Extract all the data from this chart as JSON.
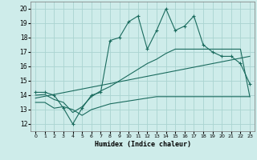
{
  "xlabel": "Humidex (Indice chaleur)",
  "background_color": "#ceecea",
  "grid_color": "#aad4d0",
  "line_color": "#1a6b5e",
  "xlim": [
    -0.5,
    23.5
  ],
  "ylim": [
    11.5,
    20.5
  ],
  "yticks": [
    12,
    13,
    14,
    15,
    16,
    17,
    18,
    19,
    20
  ],
  "xtick_positions": [
    0,
    1,
    2,
    3,
    4,
    5,
    6,
    7,
    8,
    9,
    10,
    11,
    12,
    13,
    14,
    15,
    16,
    17,
    18,
    19,
    20,
    21,
    22,
    23
  ],
  "xtick_labels": [
    "0",
    "1",
    "2",
    "3",
    "4",
    "5",
    "6",
    "7",
    "8",
    "9",
    "10",
    "11",
    "12",
    "13",
    "14",
    "15",
    "16",
    "17",
    "18",
    "19",
    "20",
    "21",
    "22",
    "23"
  ],
  "series1_x": [
    0,
    1,
    2,
    3,
    4,
    5,
    6,
    7,
    8,
    9,
    10,
    11,
    12,
    13,
    14,
    15,
    16,
    17,
    18,
    19,
    20,
    21,
    22,
    23
  ],
  "series1_y": [
    14.2,
    14.2,
    14.0,
    13.1,
    12.0,
    13.1,
    14.0,
    14.2,
    17.8,
    18.0,
    19.1,
    19.5,
    17.2,
    18.5,
    20.0,
    18.5,
    18.8,
    19.5,
    17.5,
    17.0,
    16.7,
    16.7,
    16.2,
    14.8
  ],
  "series2_x": [
    0,
    1,
    2,
    3,
    4,
    5,
    6,
    7,
    8,
    9,
    10,
    11,
    12,
    13,
    14,
    15,
    16,
    17,
    18,
    19,
    20,
    21,
    22,
    23
  ],
  "series2_y": [
    14.0,
    14.05,
    13.7,
    13.5,
    12.8,
    13.2,
    13.9,
    14.3,
    14.6,
    15.0,
    15.4,
    15.8,
    16.2,
    16.5,
    16.9,
    17.2,
    17.2,
    17.2,
    17.2,
    17.2,
    17.2,
    17.2,
    17.2,
    13.9
  ],
  "series3_x": [
    0,
    1,
    2,
    3,
    4,
    5,
    6,
    7,
    8,
    9,
    10,
    11,
    12,
    13,
    14,
    15,
    16,
    17,
    18,
    19,
    20,
    21,
    22,
    23
  ],
  "series3_y": [
    13.5,
    13.5,
    13.1,
    13.2,
    13.0,
    12.6,
    13.0,
    13.2,
    13.4,
    13.5,
    13.6,
    13.7,
    13.8,
    13.9,
    13.9,
    13.9,
    13.9,
    13.9,
    13.9,
    13.9,
    13.9,
    13.9,
    13.9,
    13.9
  ],
  "series4_x": [
    0,
    23
  ],
  "series4_y": [
    13.8,
    16.7
  ]
}
